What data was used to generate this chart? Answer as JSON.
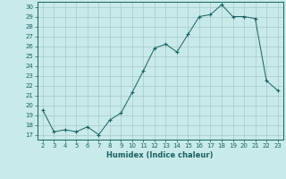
{
  "x": [
    2,
    3,
    4,
    5,
    6,
    7,
    8,
    9,
    10,
    11,
    12,
    13,
    14,
    15,
    16,
    17,
    18,
    19,
    20,
    21,
    22,
    23
  ],
  "y": [
    19.5,
    17.3,
    17.5,
    17.3,
    17.8,
    17.0,
    18.5,
    19.2,
    21.3,
    23.5,
    25.8,
    26.2,
    25.4,
    27.2,
    29.0,
    29.2,
    30.2,
    29.0,
    29.0,
    28.8,
    22.5,
    21.5
  ],
  "bg_color": "#c8eaea",
  "grid_color": "#a8c8c8",
  "line_color": "#1a6060",
  "marker_color": "#1a6060",
  "xlabel": "Humidex (Indice chaleur)",
  "xlim": [
    1.5,
    23.5
  ],
  "ylim": [
    16.5,
    30.5
  ],
  "yticks": [
    17,
    18,
    19,
    20,
    21,
    22,
    23,
    24,
    25,
    26,
    27,
    28,
    29,
    30
  ],
  "xticks": [
    2,
    3,
    4,
    5,
    6,
    7,
    8,
    9,
    10,
    11,
    12,
    13,
    14,
    15,
    16,
    17,
    18,
    19,
    20,
    21,
    22,
    23
  ]
}
